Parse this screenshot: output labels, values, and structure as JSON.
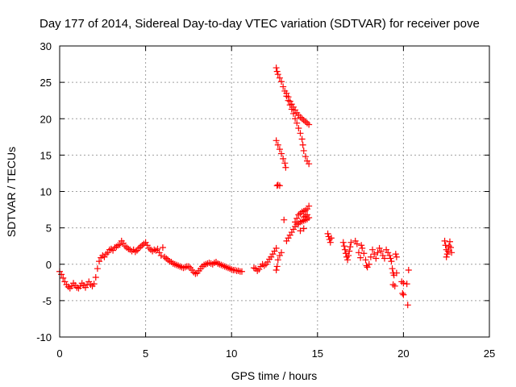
{
  "chart_data": {
    "type": "scatter",
    "title": "Day 177 of 2014, Sidereal Day-to-day VTEC variation (SDTVAR) for receiver pove",
    "xlabel": "GPS time / hours",
    "ylabel": "SDTVAR / TECUs",
    "xlim": [
      0,
      25
    ],
    "ylim": [
      -10,
      30
    ],
    "xticks": [
      0,
      5,
      10,
      15,
      20,
      25
    ],
    "yticks": [
      -10,
      -5,
      0,
      5,
      10,
      15,
      20,
      25,
      30
    ],
    "grid": true,
    "marker": "+",
    "color": "#ff0000",
    "series": [
      {
        "name": "SDTVAR",
        "points": [
          [
            0.0,
            -1.0
          ],
          [
            0.1,
            -1.4
          ],
          [
            0.2,
            -1.9
          ],
          [
            0.3,
            -2.4
          ],
          [
            0.4,
            -2.8
          ],
          [
            0.5,
            -3.1
          ],
          [
            0.6,
            -3.3
          ],
          [
            0.7,
            -3.0
          ],
          [
            0.8,
            -2.6
          ],
          [
            0.9,
            -2.9
          ],
          [
            1.0,
            -3.2
          ],
          [
            1.1,
            -3.3
          ],
          [
            1.2,
            -3.0
          ],
          [
            1.3,
            -2.6
          ],
          [
            1.4,
            -2.9
          ],
          [
            1.5,
            -3.2
          ],
          [
            1.6,
            -2.8
          ],
          [
            1.7,
            -2.4
          ],
          [
            1.8,
            -2.8
          ],
          [
            1.9,
            -3.0
          ],
          [
            2.0,
            -2.7
          ],
          [
            2.1,
            -1.8
          ],
          [
            2.2,
            -0.6
          ],
          [
            2.3,
            0.4
          ],
          [
            2.4,
            0.9
          ],
          [
            2.5,
            1.2
          ],
          [
            2.6,
            1.0
          ],
          [
            2.7,
            1.4
          ],
          [
            2.8,
            1.6
          ],
          [
            2.9,
            2.0
          ],
          [
            3.0,
            2.1
          ],
          [
            3.1,
            1.9
          ],
          [
            3.2,
            2.3
          ],
          [
            3.3,
            2.4
          ],
          [
            3.4,
            2.6
          ],
          [
            3.5,
            2.7
          ],
          [
            3.6,
            3.2
          ],
          [
            3.7,
            2.9
          ],
          [
            3.8,
            2.5
          ],
          [
            3.9,
            2.3
          ],
          [
            4.0,
            2.1
          ],
          [
            4.1,
            2.0
          ],
          [
            4.2,
            1.8
          ],
          [
            4.3,
            2.0
          ],
          [
            4.4,
            1.7
          ],
          [
            4.5,
            1.9
          ],
          [
            4.6,
            2.2
          ],
          [
            4.7,
            2.4
          ],
          [
            4.8,
            2.6
          ],
          [
            4.9,
            2.8
          ],
          [
            5.0,
            3.0
          ],
          [
            5.1,
            2.6
          ],
          [
            5.2,
            2.2
          ],
          [
            5.3,
            2.0
          ],
          [
            5.4,
            1.8
          ],
          [
            5.5,
            2.0
          ],
          [
            5.6,
            1.9
          ],
          [
            5.7,
            2.1
          ],
          [
            5.8,
            1.6
          ],
          [
            5.9,
            1.2
          ],
          [
            6.0,
            2.3
          ],
          [
            6.1,
            1.0
          ],
          [
            6.2,
            0.8
          ],
          [
            6.3,
            0.6
          ],
          [
            6.4,
            0.4
          ],
          [
            6.5,
            0.3
          ],
          [
            6.6,
            0.1
          ],
          [
            6.7,
            0.0
          ],
          [
            6.8,
            -0.1
          ],
          [
            6.9,
            -0.2
          ],
          [
            7.0,
            -0.3
          ],
          [
            7.1,
            -0.4
          ],
          [
            7.2,
            -0.5
          ],
          [
            7.3,
            -0.4
          ],
          [
            7.4,
            -0.3
          ],
          [
            7.5,
            -0.3
          ],
          [
            7.6,
            -0.5
          ],
          [
            7.7,
            -0.8
          ],
          [
            7.8,
            -1.1
          ],
          [
            7.9,
            -1.3
          ],
          [
            8.0,
            -1.2
          ],
          [
            8.1,
            -0.9
          ],
          [
            8.2,
            -0.6
          ],
          [
            8.3,
            -0.3
          ],
          [
            8.4,
            -0.1
          ],
          [
            8.5,
            0.0
          ],
          [
            8.6,
            0.1
          ],
          [
            8.7,
            0.2
          ],
          [
            8.8,
            0.1
          ],
          [
            8.9,
            0.0
          ],
          [
            9.0,
            0.2
          ],
          [
            9.1,
            0.3
          ],
          [
            9.2,
            0.1
          ],
          [
            9.3,
            0.0
          ],
          [
            9.4,
            -0.1
          ],
          [
            9.5,
            -0.2
          ],
          [
            9.6,
            -0.3
          ],
          [
            9.7,
            -0.4
          ],
          [
            9.8,
            -0.5
          ],
          [
            9.9,
            -0.6
          ],
          [
            10.0,
            -0.7
          ],
          [
            10.1,
            -0.8
          ],
          [
            10.2,
            -0.8
          ],
          [
            10.3,
            -0.9
          ],
          [
            10.4,
            -0.9
          ],
          [
            10.5,
            -1.0
          ],
          [
            10.6,
            -1.0
          ],
          [
            11.3,
            -0.5
          ],
          [
            11.4,
            -0.6
          ],
          [
            11.5,
            -0.9
          ],
          [
            11.6,
            -0.7
          ],
          [
            11.7,
            -0.3
          ],
          [
            11.8,
            0.0
          ],
          [
            11.9,
            -0.2
          ],
          [
            12.0,
            0.0
          ],
          [
            12.1,
            0.3
          ],
          [
            12.2,
            0.7
          ],
          [
            12.3,
            1.0
          ],
          [
            12.4,
            1.4
          ],
          [
            12.5,
            1.8
          ],
          [
            12.6,
            2.2
          ],
          [
            12.6,
            -0.8
          ],
          [
            12.65,
            -0.3
          ],
          [
            12.7,
            0.6
          ],
          [
            12.8,
            1.2
          ],
          [
            12.9,
            1.6
          ],
          [
            12.65,
            10.8
          ],
          [
            12.7,
            10.9
          ],
          [
            12.8,
            10.8
          ],
          [
            13.05,
            6.1
          ],
          [
            12.6,
            17.0
          ],
          [
            12.7,
            16.4
          ],
          [
            12.8,
            15.8
          ],
          [
            12.9,
            15.2
          ],
          [
            13.0,
            14.5
          ],
          [
            13.1,
            13.9
          ],
          [
            13.15,
            13.3
          ],
          [
            12.6,
            27.0
          ],
          [
            12.65,
            26.5
          ],
          [
            12.7,
            26.1
          ],
          [
            12.8,
            25.6
          ],
          [
            12.9,
            25.1
          ],
          [
            13.0,
            24.4
          ],
          [
            13.1,
            23.8
          ],
          [
            13.2,
            23.1
          ],
          [
            13.3,
            22.5
          ],
          [
            13.4,
            21.9
          ],
          [
            13.5,
            21.3
          ],
          [
            13.6,
            20.7
          ],
          [
            13.7,
            20.0
          ],
          [
            13.8,
            19.4
          ],
          [
            13.9,
            18.7
          ],
          [
            14.0,
            18.0
          ],
          [
            14.1,
            17.2
          ],
          [
            14.15,
            16.4
          ],
          [
            14.2,
            15.6
          ],
          [
            14.3,
            14.8
          ],
          [
            14.4,
            14.2
          ],
          [
            14.5,
            13.8
          ],
          [
            13.2,
            23.5
          ],
          [
            13.3,
            23.0
          ],
          [
            13.4,
            22.4
          ],
          [
            13.5,
            22.0
          ],
          [
            13.6,
            21.6
          ],
          [
            13.7,
            21.2
          ],
          [
            13.8,
            20.8
          ],
          [
            13.9,
            20.5
          ],
          [
            14.0,
            20.2
          ],
          [
            14.1,
            20.0
          ],
          [
            14.2,
            19.8
          ],
          [
            14.3,
            19.6
          ],
          [
            14.4,
            19.4
          ],
          [
            14.5,
            19.2
          ],
          [
            13.2,
            3.2
          ],
          [
            13.3,
            3.6
          ],
          [
            13.4,
            4.0
          ],
          [
            13.5,
            4.4
          ],
          [
            13.6,
            4.8
          ],
          [
            13.7,
            5.2
          ],
          [
            13.8,
            5.5
          ],
          [
            13.9,
            5.6
          ],
          [
            14.0,
            5.8
          ],
          [
            14.1,
            5.9
          ],
          [
            14.2,
            6.0
          ],
          [
            14.3,
            6.1
          ],
          [
            14.4,
            6.2
          ],
          [
            14.5,
            6.4
          ],
          [
            13.7,
            5.8
          ],
          [
            13.8,
            6.3
          ],
          [
            13.9,
            6.8
          ],
          [
            14.0,
            7.0
          ],
          [
            14.1,
            7.2
          ],
          [
            14.2,
            7.3
          ],
          [
            14.3,
            7.4
          ],
          [
            14.4,
            7.6
          ],
          [
            14.5,
            8.0
          ],
          [
            14.4,
            6.8
          ],
          [
            14.3,
            6.6
          ],
          [
            14.2,
            6.5
          ],
          [
            14.0,
            4.6
          ],
          [
            14.2,
            4.9
          ],
          [
            15.6,
            4.2
          ],
          [
            15.65,
            3.8
          ],
          [
            15.7,
            3.4
          ],
          [
            15.75,
            3.0
          ],
          [
            15.8,
            3.6
          ],
          [
            16.5,
            3.0
          ],
          [
            16.55,
            2.5
          ],
          [
            16.6,
            2.0
          ],
          [
            16.65,
            1.5
          ],
          [
            16.7,
            1.0
          ],
          [
            16.75,
            0.6
          ],
          [
            16.8,
            1.2
          ],
          [
            16.85,
            1.8
          ],
          [
            16.9,
            2.4
          ],
          [
            16.95,
            3.0
          ],
          [
            17.2,
            3.2
          ],
          [
            17.3,
            2.8
          ],
          [
            17.4,
            1.6
          ],
          [
            17.5,
            0.9
          ],
          [
            17.55,
            2.6
          ],
          [
            17.6,
            2.2
          ],
          [
            17.7,
            1.5
          ],
          [
            17.8,
            0.6
          ],
          [
            17.85,
            -0.2
          ],
          [
            17.9,
            -0.4
          ],
          [
            18.0,
            0.0
          ],
          [
            18.1,
            1.0
          ],
          [
            18.2,
            2.0
          ],
          [
            18.3,
            1.4
          ],
          [
            18.4,
            0.8
          ],
          [
            18.5,
            1.6
          ],
          [
            18.6,
            2.2
          ],
          [
            18.7,
            1.8
          ],
          [
            18.8,
            1.2
          ],
          [
            18.9,
            0.8
          ],
          [
            19.0,
            2.0
          ],
          [
            19.1,
            1.6
          ],
          [
            19.2,
            1.2
          ],
          [
            19.25,
            0.8
          ],
          [
            19.3,
            0.4
          ],
          [
            19.35,
            -0.6
          ],
          [
            19.4,
            -1.2
          ],
          [
            19.45,
            -1.5
          ],
          [
            19.5,
            -3.0
          ],
          [
            19.4,
            -2.8
          ],
          [
            19.55,
            1.4
          ],
          [
            19.6,
            1.0
          ],
          [
            19.6,
            -1.2
          ],
          [
            19.9,
            -2.4
          ],
          [
            20.0,
            -2.6
          ],
          [
            19.95,
            -4.0
          ],
          [
            20.0,
            -4.2
          ],
          [
            20.2,
            -2.7
          ],
          [
            20.3,
            -0.8
          ],
          [
            20.25,
            -5.6
          ],
          [
            22.4,
            3.2
          ],
          [
            22.45,
            2.6
          ],
          [
            22.5,
            2.0
          ],
          [
            22.55,
            1.4
          ],
          [
            22.6,
            1.8
          ],
          [
            22.65,
            2.5
          ],
          [
            22.7,
            3.1
          ],
          [
            22.75,
            2.3
          ],
          [
            22.8,
            1.6
          ],
          [
            22.5,
            1.0
          ]
        ]
      }
    ]
  }
}
